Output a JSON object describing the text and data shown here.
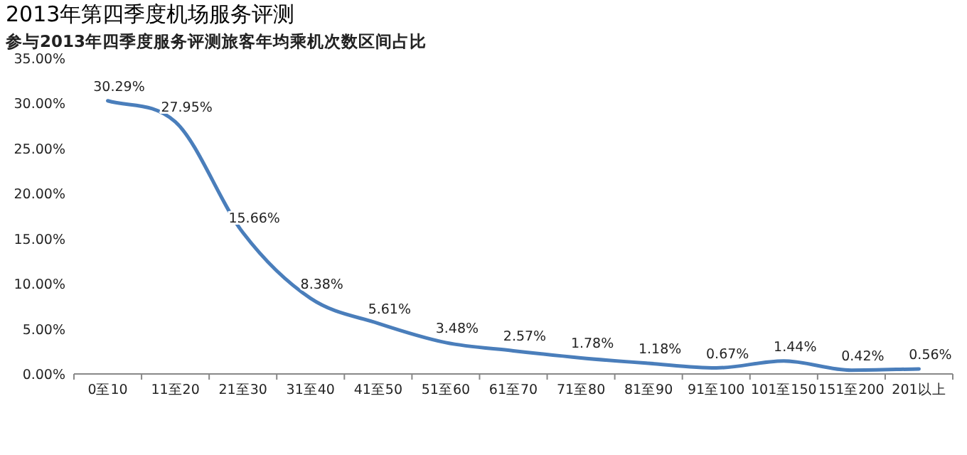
{
  "chart_data": {
    "type": "line",
    "title": "2013年第四季度机场服务评测",
    "subtitle": "参与2013年四季度服务评测旅客年均乘机次数区间占比",
    "categories": [
      "0至10",
      "11至20",
      "21至30",
      "31至40",
      "41至50",
      "51至60",
      "61至70",
      "71至80",
      "81至90",
      "91至100",
      "101至150",
      "151至200",
      "201以上"
    ],
    "series": [
      {
        "color": "#4a7ebb",
        "values": [
          30.29,
          27.95,
          15.66,
          8.38,
          5.61,
          3.48,
          2.57,
          1.78,
          1.18,
          0.67,
          1.44,
          0.42,
          0.56
        ],
        "value_labels": [
          "30.29%",
          "27.95%",
          "15.66%",
          "8.38%",
          "5.61%",
          "3.48%",
          "2.57%",
          "1.78%",
          "1.18%",
          "0.67%",
          "1.44%",
          "0.42%",
          "0.56%"
        ]
      }
    ],
    "ylim": [
      0,
      35
    ],
    "yticks": [
      {
        "value": 0,
        "label": "0.00%"
      },
      {
        "value": 5,
        "label": "5.00%"
      },
      {
        "value": 10,
        "label": "10.00%"
      },
      {
        "value": 15,
        "label": "15.00%"
      },
      {
        "value": 20,
        "label": "20.00%"
      },
      {
        "value": 25,
        "label": "25.00%"
      },
      {
        "value": 30,
        "label": "30.00%"
      },
      {
        "value": 35,
        "label": "35.00%"
      }
    ],
    "grid": false,
    "marker": "none",
    "line_style": "solid"
  }
}
